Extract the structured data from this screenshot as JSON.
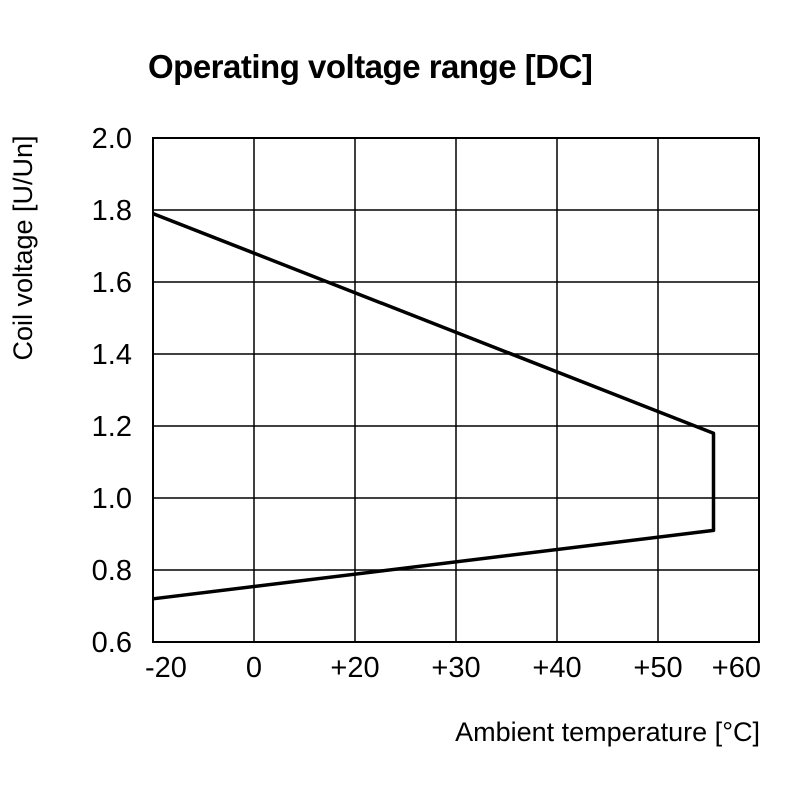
{
  "chart_data": {
    "type": "line",
    "title": "Operating voltage range [DC]",
    "xlabel": "Ambient temperature [°C]",
    "ylabel": "Coil voltage [U/Un]",
    "x_tick_labels": [
      "-20",
      "0",
      "+20",
      "+30",
      "+40",
      "+50",
      "+60"
    ],
    "y_tick_labels": [
      "0.6",
      "0.8",
      "1.0",
      "1.2",
      "1.4",
      "1.6",
      "1.8",
      "2.0"
    ],
    "ylim": [
      0.6,
      2.0
    ],
    "grid": true,
    "legend": "none",
    "series": [
      {
        "x": [
          -20,
          55.5,
          55.5,
          -20
        ],
        "y": [
          1.79,
          1.18,
          0.91,
          0.72
        ]
      }
    ]
  }
}
